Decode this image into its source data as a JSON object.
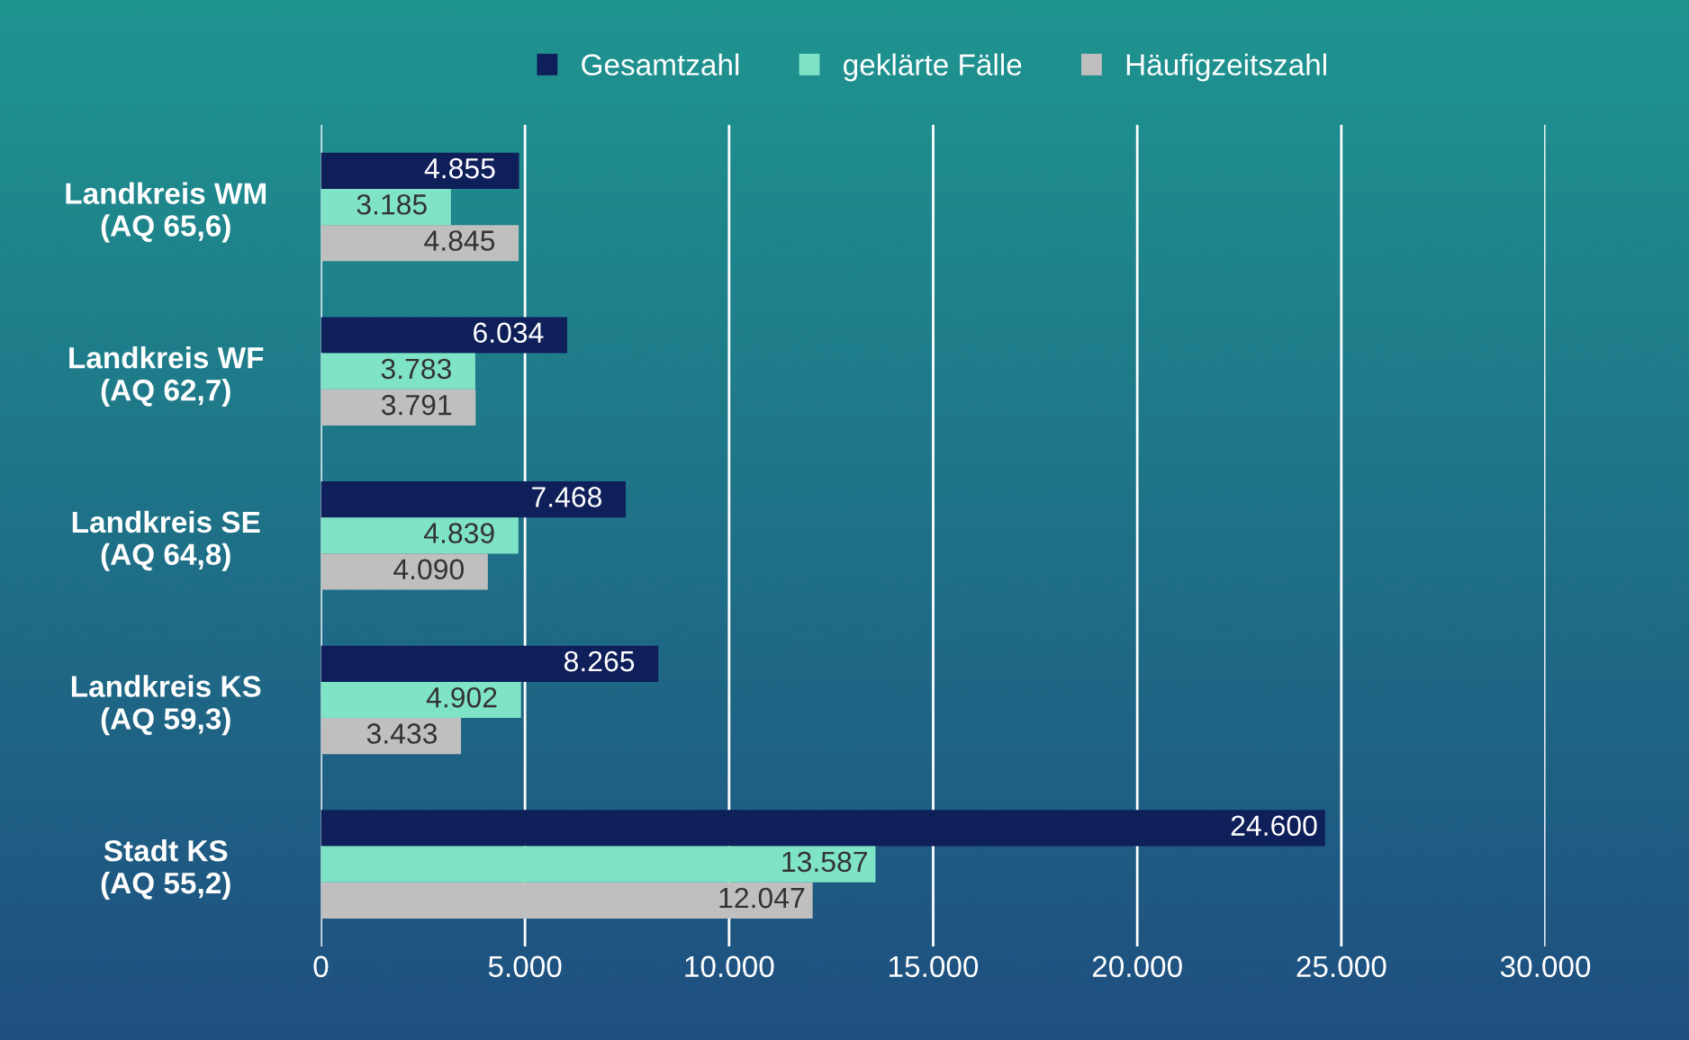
{
  "chart_data": {
    "type": "bar",
    "orientation": "horizontal",
    "categories": [
      "Landkreis WM\n(AQ 65,6)",
      "Landkreis WF\n(AQ 62,7)",
      "Landkreis SE\n(AQ 64,8)",
      "Landkreis KS\n(AQ 59,3)",
      "Stadt KS\n(AQ 55,2)"
    ],
    "series": [
      {
        "name": "Gesamtzahl",
        "color": "#0f1f5a",
        "values": [
          4855,
          6034,
          7468,
          8265,
          24600
        ],
        "value_labels": [
          "4.855",
          "6.034",
          "7.468",
          "8.265",
          "24.600"
        ]
      },
      {
        "name": "geklärte Fälle",
        "color": "#7fe3c6",
        "values": [
          3185,
          3783,
          4839,
          4902,
          13587
        ],
        "value_labels": [
          "3.185",
          "3.783",
          "4.839",
          "4.902",
          "13.587"
        ]
      },
      {
        "name": "Häufigzeitszahl",
        "color": "#bfbfbf",
        "values": [
          4845,
          3791,
          4090,
          3433,
          12047
        ],
        "value_labels": [
          "4.845",
          "3.791",
          "4.090",
          "3.433",
          "12.047"
        ]
      }
    ],
    "xlim": [
      0,
      30000
    ],
    "xticks": [
      0,
      {
        "value": 5000,
        "label": "5.000"
      },
      {
        "value": 10000,
        "label": "10.000"
      },
      {
        "value": 15000,
        "label": "15.000"
      },
      {
        "value": 20000,
        "label": "20.000"
      },
      {
        "value": 25000,
        "label": "25.000"
      },
      {
        "value": 30000,
        "label": "30.000"
      }
    ],
    "grid": "x",
    "legend": "top"
  }
}
